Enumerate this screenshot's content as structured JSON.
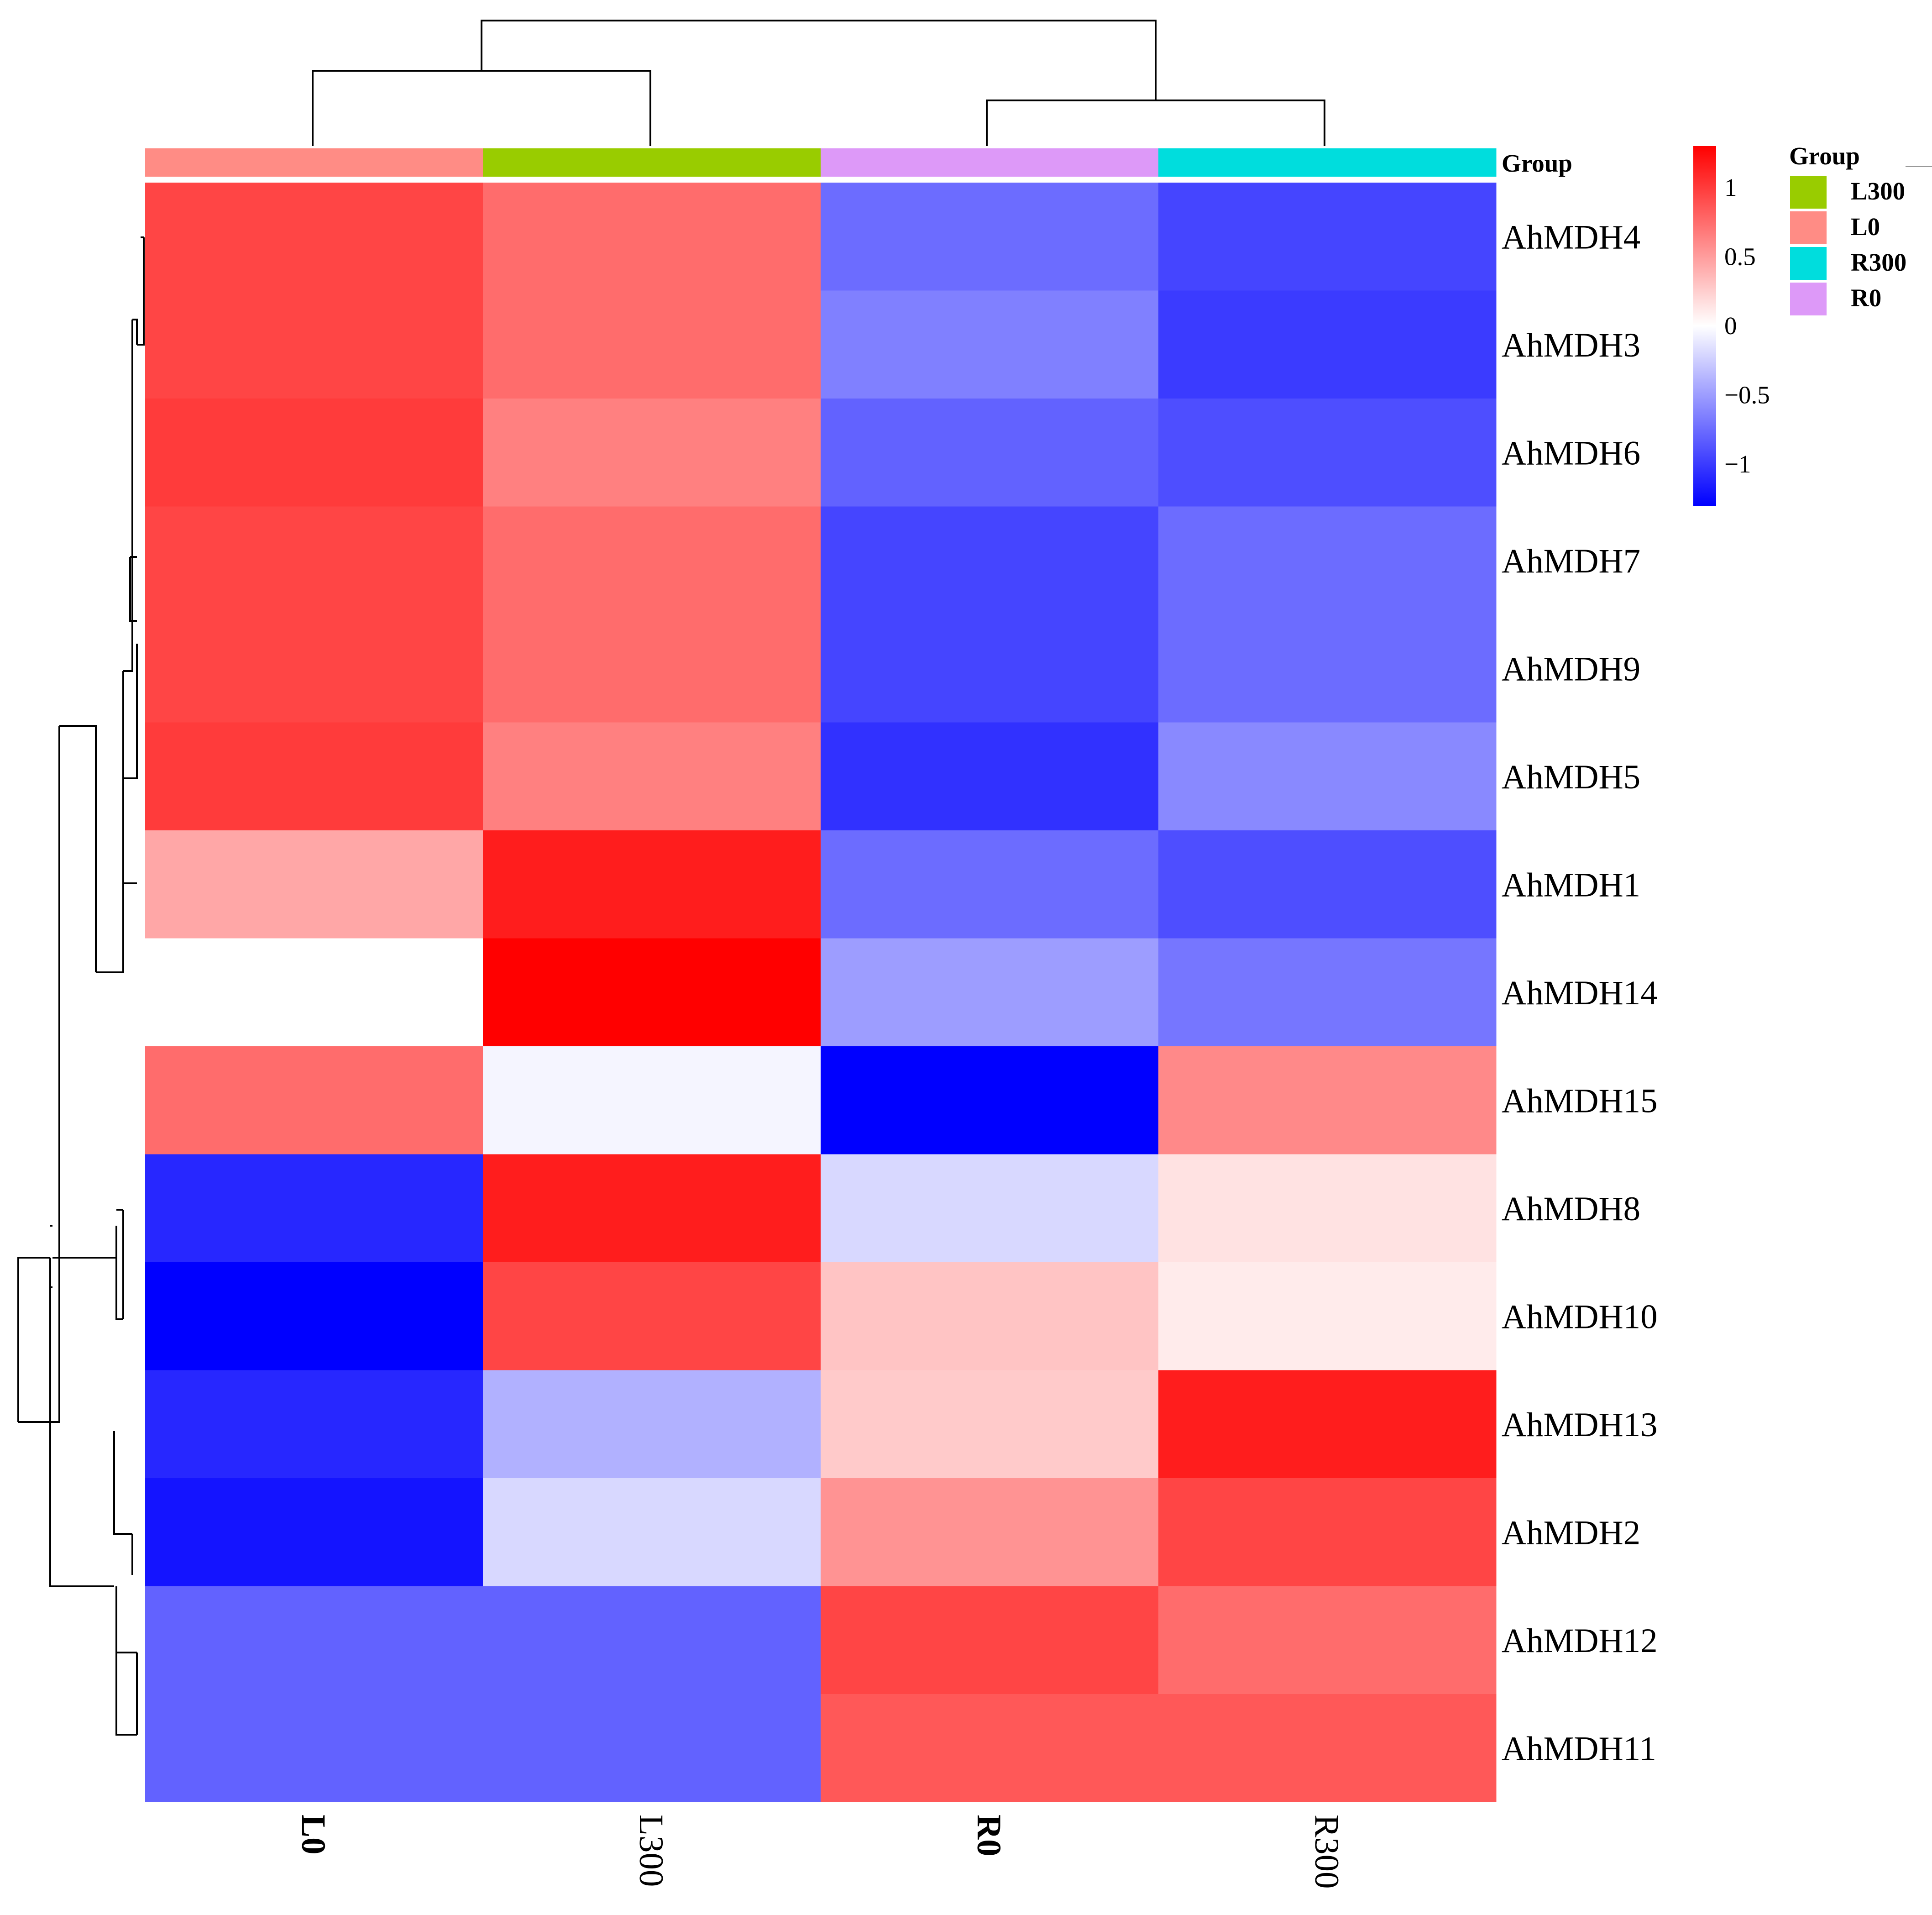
{
  "chart_data": {
    "type": "heatmap",
    "title": "",
    "columns": [
      "L0",
      "L300",
      "R0",
      "R300"
    ],
    "column_label_bold": [
      true,
      false,
      true,
      false
    ],
    "rows": [
      "AhMDH4",
      "AhMDH3",
      "AhMDH6",
      "AhMDH7",
      "AhMDH9",
      "AhMDH5",
      "AhMDH1",
      "AhMDH14",
      "AhMDH15",
      "AhMDH8",
      "AhMDH10",
      "AhMDH13",
      "AhMDH2",
      "AhMDH12",
      "AhMDH11"
    ],
    "values": [
      [
        0.95,
        0.75,
        -0.75,
        -0.95
      ],
      [
        0.95,
        0.75,
        -0.65,
        -1.0
      ],
      [
        1.0,
        0.65,
        -0.8,
        -0.9
      ],
      [
        0.95,
        0.75,
        -0.95,
        -0.75
      ],
      [
        0.95,
        0.75,
        -0.95,
        -0.75
      ],
      [
        1.0,
        0.65,
        -1.05,
        -0.6
      ],
      [
        0.45,
        1.15,
        -0.75,
        -0.9
      ],
      [
        0.0,
        1.3,
        -0.5,
        -0.7
      ],
      [
        0.75,
        -0.05,
        -1.3,
        0.6
      ],
      [
        -1.1,
        1.15,
        -0.2,
        0.15
      ],
      [
        -1.3,
        0.95,
        0.3,
        0.1
      ],
      [
        -1.1,
        -0.4,
        0.27,
        1.15
      ],
      [
        -1.2,
        -0.2,
        0.55,
        0.95
      ],
      [
        -0.8,
        -0.8,
        0.95,
        0.75
      ],
      [
        -0.8,
        -0.8,
        0.85,
        0.85
      ]
    ],
    "color_scale": {
      "low": "#0000FF",
      "mid": "#FFFFFF",
      "high": "#FF0000",
      "range": [
        -1.3,
        1.3
      ],
      "ticks": [
        1,
        0.5,
        0,
        -0.5,
        -1
      ],
      "tick_labels": [
        "1",
        "0.5",
        "0",
        "−0.5",
        "−1"
      ]
    },
    "annotation": {
      "title": "Group",
      "legend_title": "Group",
      "column_groups": [
        "L0",
        "L300",
        "R0",
        "R300"
      ],
      "legend": [
        {
          "name": "L300",
          "color": "#99CC00"
        },
        {
          "name": "L0",
          "color": "#FF8C85"
        },
        {
          "name": "R300",
          "color": "#00DDDD"
        },
        {
          "name": "R0",
          "color": "#DD99F8"
        }
      ]
    },
    "row_dendrogram": true,
    "column_dendrogram": true
  }
}
